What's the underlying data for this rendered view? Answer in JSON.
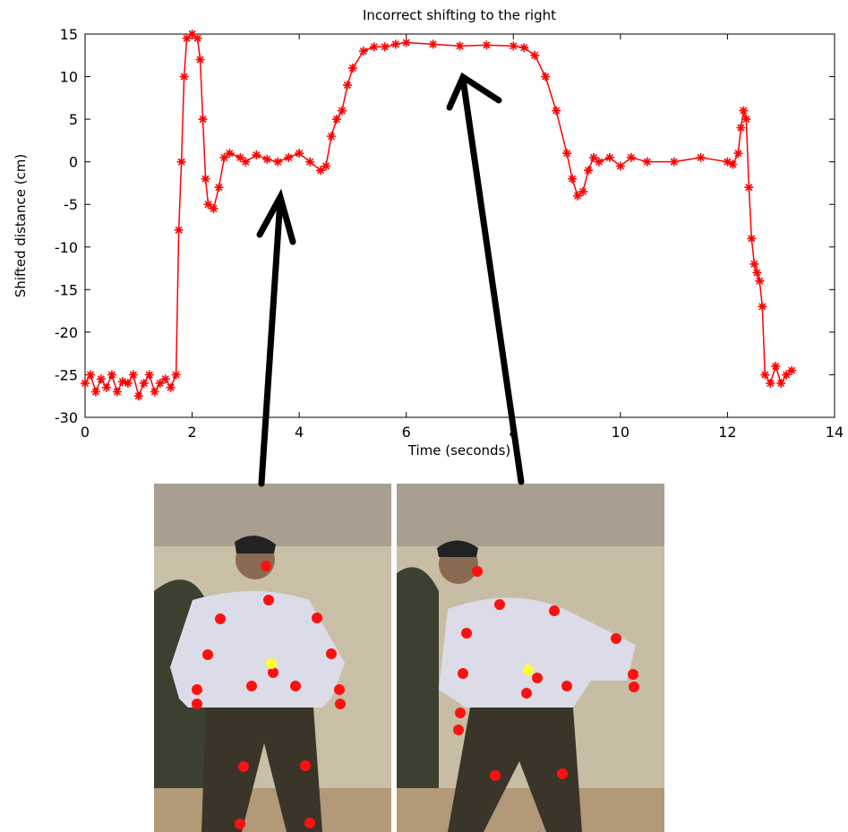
{
  "chart_data": {
    "type": "line",
    "title": "Incorrect shifting to the right",
    "x_label": "Time (seconds)",
    "y_label": "Shifted distance (cm)",
    "xlim": [
      0,
      14
    ],
    "xticks": [
      0,
      2,
      4,
      6,
      8,
      10,
      12,
      14
    ],
    "ylim": [
      -30,
      15
    ],
    "yticks": [
      -30,
      -25,
      -20,
      -15,
      -10,
      -5,
      0,
      5,
      10,
      15
    ],
    "series": [
      {
        "color": "#ff0000",
        "x": [
          0,
          0.1,
          0.2,
          0.3,
          0.4,
          0.5,
          0.6,
          0.7,
          0.8,
          0.9,
          1.0,
          1.1,
          1.2,
          1.3,
          1.4,
          1.5,
          1.6,
          1.7,
          1.75,
          1.8,
          1.85,
          1.9,
          2.0,
          2.1,
          2.15,
          2.2,
          2.25,
          2.3,
          2.4,
          2.5,
          2.6,
          2.7,
          2.9,
          3.0,
          3.2,
          3.4,
          3.6,
          3.8,
          4.0,
          4.2,
          4.4,
          4.5,
          4.6,
          4.7,
          4.8,
          4.9,
          5.0,
          5.2,
          5.4,
          5.6,
          5.8,
          6.0,
          6.5,
          7.0,
          7.5,
          8.0,
          8.2,
          8.4,
          8.6,
          8.8,
          9.0,
          9.1,
          9.2,
          9.3,
          9.4,
          9.5,
          9.6,
          9.8,
          10.0,
          10.2,
          10.5,
          11.0,
          11.5,
          12.0,
          12.1,
          12.2,
          12.25,
          12.3,
          12.35,
          12.4,
          12.45,
          12.5,
          12.55,
          12.6,
          12.65,
          12.7,
          12.8,
          12.9,
          13.0,
          13.1,
          13.2
        ],
        "values": [
          -26,
          -25,
          -27,
          -25.5,
          -26.5,
          -25,
          -27,
          -25.8,
          -26,
          -25,
          -27.5,
          -26,
          -25,
          -27,
          -26,
          -25.5,
          -26.5,
          -25,
          -8,
          0,
          10,
          14.5,
          15,
          14.5,
          12,
          5,
          -2,
          -5,
          -5.5,
          -3,
          0.5,
          1,
          0.5,
          0,
          0.8,
          0.3,
          0,
          0.5,
          1,
          0,
          -1,
          -0.5,
          3,
          5,
          6,
          9,
          11,
          13,
          13.5,
          13.5,
          13.8,
          14,
          13.8,
          13.6,
          13.7,
          13.6,
          13.4,
          12.5,
          10,
          6,
          1,
          -2,
          -4,
          -3.5,
          -1,
          0.5,
          0,
          0.5,
          -0.5,
          0.5,
          0,
          0,
          0.5,
          0,
          -0.3,
          1,
          4,
          6,
          5,
          -3,
          -9,
          -12,
          -13,
          -14,
          -17,
          -25,
          -26,
          -24,
          -26,
          -25,
          -24.5
        ]
      }
    ]
  }
}
